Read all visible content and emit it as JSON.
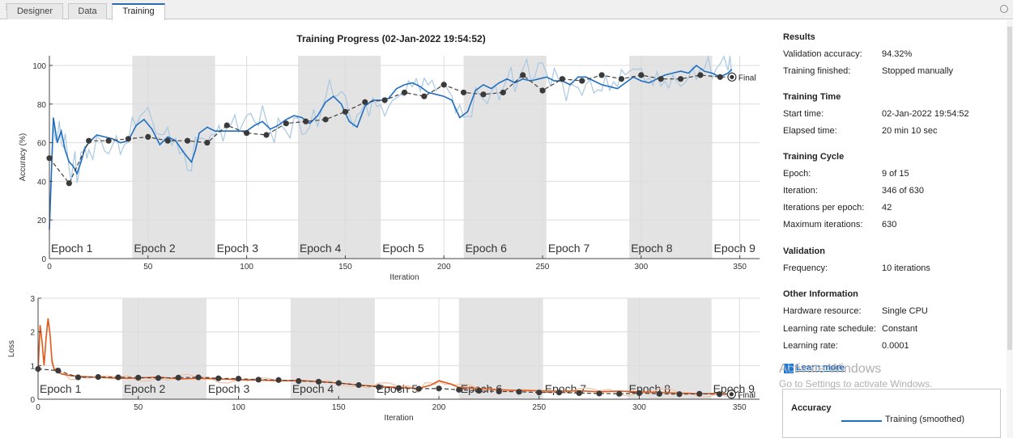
{
  "tabs": [
    {
      "label": "Designer"
    },
    {
      "label": "Data"
    },
    {
      "label": "Training"
    }
  ],
  "title": "Training Progress (02-Jan-2022 19:54:52)",
  "results": {
    "heading": "Results",
    "validation_accuracy_label": "Validation accuracy:",
    "validation_accuracy_value": "94.32%",
    "training_finished_label": "Training finished:",
    "training_finished_value": "Stopped manually"
  },
  "training_time": {
    "heading": "Training Time",
    "start_label": "Start time:",
    "start_value": "02-Jan-2022 19:54:52",
    "elapsed_label": "Elapsed time:",
    "elapsed_value": "20 min 10 sec"
  },
  "training_cycle": {
    "heading": "Training Cycle",
    "epoch_label": "Epoch:",
    "epoch_value": "9 of 15",
    "iteration_label": "Iteration:",
    "iteration_value": "346 of 630",
    "ipe_label": "Iterations per epoch:",
    "ipe_value": "42",
    "maxit_label": "Maximum iterations:",
    "maxit_value": "630"
  },
  "validation": {
    "heading": "Validation",
    "frequency_label": "Frequency:",
    "frequency_value": "10 iterations"
  },
  "other": {
    "heading": "Other Information",
    "hardware_label": "Hardware resource:",
    "hardware_value": "Single CPU",
    "lrs_label": "Learning rate schedule:",
    "lrs_value": "Constant",
    "lr_label": "Learning rate:",
    "lr_value": "0.0001"
  },
  "learn_more": "Learn more",
  "legend": {
    "title": "Accuracy",
    "training_smoothed": "Training (smoothed)"
  },
  "watermark": {
    "line1": "Activate Windows",
    "line2": "Go to Settings to activate Windows."
  },
  "final_label": "Final",
  "colors": {
    "accuracy_smoothed": "#1f6ec1",
    "accuracy_raw": "#a9c8e2",
    "loss_smoothed": "#e05a1c",
    "loss_raw": "#f0c2a8",
    "validation": "#404040",
    "epoch_band": "#e3e3e3"
  },
  "chart_data": [
    {
      "type": "line",
      "title": "Training Progress (02-Jan-2022 19:54:52)",
      "xlabel": "Iteration",
      "ylabel": "Accuracy (%)",
      "xlim": [
        0,
        360
      ],
      "ylim": [
        0,
        105
      ],
      "xticks": [
        0,
        50,
        100,
        150,
        200,
        250,
        300,
        350
      ],
      "yticks": [
        0,
        20,
        40,
        60,
        80,
        100
      ],
      "grid": true,
      "epoch_labels": [
        "Epoch 1",
        "Epoch 2",
        "Epoch 3",
        "Epoch 4",
        "Epoch 5",
        "Epoch 6",
        "Epoch 7",
        "Epoch 8",
        "Epoch 9"
      ],
      "epoch_boundaries": [
        0,
        42,
        84,
        126,
        168,
        210,
        252,
        294,
        336,
        360
      ],
      "series": [
        {
          "name": "Training (smoothed)",
          "x": [
            0,
            2,
            4,
            6,
            8,
            10,
            12,
            14,
            16,
            18,
            20,
            24,
            28,
            32,
            36,
            40,
            44,
            48,
            52,
            56,
            60,
            64,
            68,
            72,
            74,
            76,
            80,
            84,
            88,
            92,
            96,
            100,
            104,
            108,
            112,
            116,
            120,
            124,
            128,
            132,
            136,
            140,
            144,
            148,
            152,
            156,
            160,
            164,
            168,
            172,
            176,
            180,
            184,
            188,
            192,
            196,
            200,
            204,
            208,
            212,
            216,
            220,
            224,
            228,
            232,
            236,
            240,
            244,
            248,
            252,
            256,
            260,
            264,
            268,
            272,
            276,
            280,
            284,
            288,
            292,
            296,
            300,
            304,
            308,
            312,
            316,
            320,
            324,
            328,
            332,
            336,
            340,
            344,
            346
          ],
          "y": [
            15,
            73,
            60,
            66,
            56,
            50,
            48,
            44,
            50,
            57,
            60,
            64,
            63,
            62,
            60,
            61,
            69,
            72,
            67,
            59,
            63,
            61,
            55,
            50,
            56,
            65,
            68,
            66,
            66,
            66,
            66,
            66,
            69,
            71,
            67,
            69,
            72,
            74,
            73,
            70,
            74,
            81,
            84,
            80,
            71,
            68,
            79,
            82,
            82,
            83,
            88,
            90,
            91,
            89,
            86,
            85,
            84,
            82,
            73,
            76,
            87,
            90,
            88,
            91,
            93,
            91,
            93,
            92,
            93,
            94,
            92,
            92,
            90,
            94,
            94,
            92,
            90,
            89,
            88,
            91,
            94,
            92,
            91,
            93,
            95,
            96,
            97,
            96,
            100,
            97,
            96,
            94,
            96,
            98
          ]
        },
        {
          "name": "Validation",
          "x": [
            0,
            10,
            20,
            30,
            40,
            50,
            60,
            70,
            80,
            90,
            100,
            110,
            120,
            130,
            140,
            150,
            160,
            170,
            180,
            190,
            200,
            210,
            220,
            230,
            240,
            250,
            260,
            270,
            280,
            290,
            300,
            310,
            320,
            330,
            340,
            346
          ],
          "y": [
            52,
            39,
            61,
            61,
            62,
            63,
            61,
            61,
            60,
            69,
            65,
            64,
            70,
            71,
            72,
            76,
            81,
            82,
            86,
            84,
            90,
            86,
            85,
            86,
            95,
            87,
            93,
            92,
            95,
            93,
            95,
            93,
            93,
            95,
            94,
            94
          ]
        }
      ]
    },
    {
      "type": "line",
      "xlabel": "Iteration",
      "ylabel": "Loss",
      "xlim": [
        0,
        360
      ],
      "ylim": [
        0,
        3
      ],
      "xticks": [
        0,
        50,
        100,
        150,
        200,
        250,
        300,
        350
      ],
      "yticks": [
        0,
        1,
        2,
        3
      ],
      "grid": true,
      "epoch_labels": [
        "Epoch 1",
        "Epoch 2",
        "Epoch 3",
        "Epoch 4",
        "Epoch 5",
        "Epoch 6",
        "Epoch 7",
        "Epoch 8",
        "Epoch 9"
      ],
      "epoch_boundaries": [
        0,
        42,
        84,
        126,
        168,
        210,
        252,
        294,
        336,
        360
      ],
      "series": [
        {
          "name": "Training (smoothed)",
          "x": [
            0,
            1,
            2,
            3,
            4,
            5,
            6,
            7,
            8,
            10,
            12,
            16,
            20,
            30,
            40,
            50,
            60,
            70,
            80,
            90,
            100,
            110,
            120,
            130,
            140,
            150,
            160,
            170,
            180,
            190,
            196,
            200,
            206,
            210,
            220,
            230,
            240,
            250,
            260,
            270,
            280,
            290,
            300,
            310,
            320,
            330,
            340,
            346
          ],
          "y": [
            0.8,
            2.2,
            1.7,
            1.0,
            1.8,
            2.4,
            1.9,
            1.1,
            0.9,
            0.8,
            0.75,
            0.7,
            0.68,
            0.65,
            0.62,
            0.63,
            0.66,
            0.6,
            0.62,
            0.6,
            0.58,
            0.57,
            0.55,
            0.56,
            0.52,
            0.48,
            0.42,
            0.38,
            0.35,
            0.32,
            0.42,
            0.55,
            0.45,
            0.35,
            0.32,
            0.28,
            0.26,
            0.25,
            0.24,
            0.25,
            0.22,
            0.24,
            0.22,
            0.2,
            0.18,
            0.16,
            0.17,
            0.15
          ]
        },
        {
          "name": "Validation",
          "x": [
            0,
            10,
            20,
            30,
            40,
            50,
            60,
            70,
            80,
            90,
            100,
            110,
            120,
            130,
            140,
            150,
            160,
            170,
            180,
            190,
            200,
            210,
            220,
            230,
            240,
            250,
            260,
            270,
            280,
            290,
            300,
            310,
            320,
            330,
            340,
            346
          ],
          "y": [
            0.9,
            0.85,
            0.65,
            0.66,
            0.65,
            0.64,
            0.63,
            0.64,
            0.65,
            0.62,
            0.61,
            0.58,
            0.57,
            0.54,
            0.52,
            0.48,
            0.42,
            0.36,
            0.33,
            0.31,
            0.32,
            0.28,
            0.25,
            0.23,
            0.22,
            0.2,
            0.2,
            0.18,
            0.17,
            0.16,
            0.18,
            0.16,
            0.15,
            0.16,
            0.15,
            0.15
          ]
        }
      ]
    }
  ]
}
